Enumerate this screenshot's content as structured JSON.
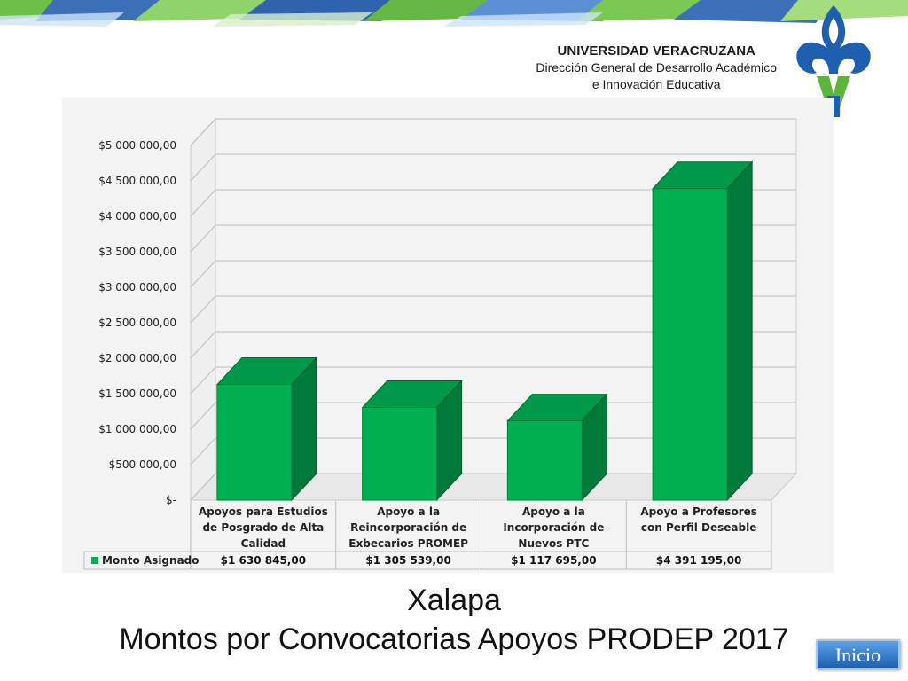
{
  "header": {
    "university": "UNIVERSIDAD VERACRUZANA",
    "department_line1": "Dirección General de Desarrollo Académico",
    "department_line2": "e Innovación Educativa"
  },
  "colors": {
    "bar_front": "#00b050",
    "bar_side": "#007a3a",
    "bar_top": "#00994a",
    "accent_blue": "#4a7cc0",
    "accent_green": "#6cc04a"
  },
  "chart_data": {
    "type": "bar",
    "categories": [
      [
        "Apoyos para Estudios",
        "de Posgrado de Alta",
        "Calidad"
      ],
      [
        "Apoyo a la",
        "Reincorporación de",
        "Exbecarios PROMEP"
      ],
      [
        "Apoyo a la",
        "Incorporación de",
        "Nuevos PTC"
      ],
      [
        "Apoyo a Profesores",
        "con Perfil Deseable"
      ]
    ],
    "series": [
      {
        "name": "Monto Asignado",
        "values": [
          1630845,
          1305539,
          1117695,
          4391195
        ]
      }
    ],
    "value_labels": [
      "$1 630 845,00",
      "$1 305 539,00",
      "$1 117 695,00",
      "$4 391 195,00"
    ],
    "ytick_labels": [
      "$-",
      "$500 000,00",
      "$1 000 000,00",
      "$1 500 000,00",
      "$2 000 000,00",
      "$2 500 000,00",
      "$3 000 000,00",
      "$3 500 000,00",
      "$4 000 000,00",
      "$4 500 000,00",
      "$5 000 000,00"
    ],
    "ytick_values": [
      0,
      500000,
      1000000,
      1500000,
      2000000,
      2500000,
      3000000,
      3500000,
      4000000,
      4500000,
      5000000
    ],
    "ylim": [
      0,
      5000000
    ],
    "grid": true,
    "legend": "data-table"
  },
  "footer": {
    "city": "Xalapa",
    "title": "Montos por Convocatorias Apoyos PRODEP 2017",
    "button_label": "Inicio"
  }
}
